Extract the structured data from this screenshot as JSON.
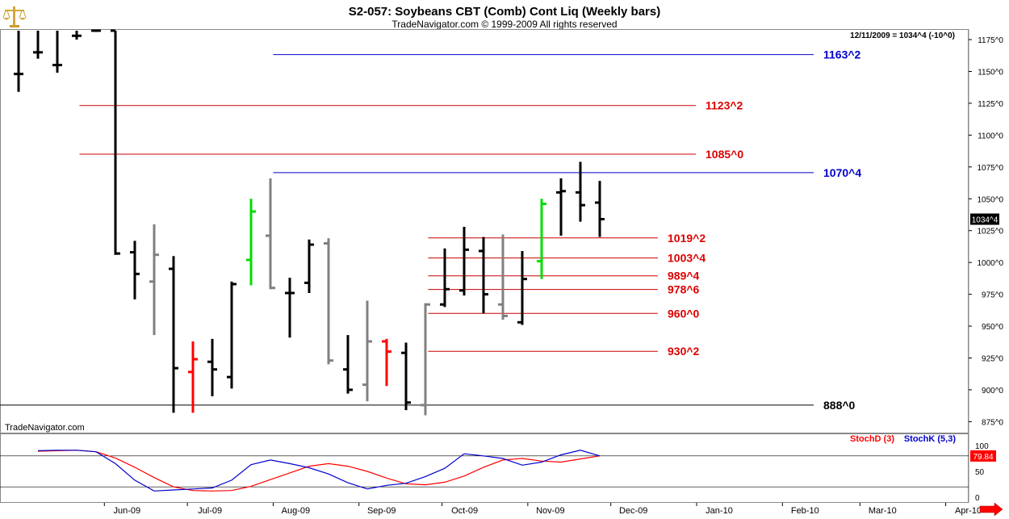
{
  "header": {
    "title": "S2-057:  Soybeans CBT (Comb) Cont Liq  (Weekly bars)",
    "subtitle": "TradeNavigator.com © 1999-2009 All rights reserved",
    "info": "12/11/2009 = 1034^4 (-10^0)",
    "watermark": "TradeNavigator.com",
    "logo_icon": "scales-logo-icon"
  },
  "colors": {
    "up": "#000000",
    "down_gray": "#808080",
    "green": "#00dd00",
    "red": "#ff0000",
    "blue_level": "#0000cc",
    "red_level": "#cc0000",
    "stochD": "#ff0000",
    "stochK": "#0000cc"
  },
  "chart_data": [
    {
      "type": "ohlc",
      "title": "S2-057:  Soybeans CBT (Comb) Cont Liq  (Weekly bars)",
      "y_ticks": [
        "1175^0",
        "1150^0",
        "1125^0",
        "1100^0",
        "1075^0",
        "1050^0",
        "1025^0",
        "1000^0",
        "975^0",
        "950^0",
        "925^0",
        "900^0",
        "875^0"
      ],
      "ylim": [
        867,
        1182
      ],
      "x_labels": [
        "Jun-09",
        "Jul-09",
        "Aug-09",
        "Sep-09",
        "Oct-09",
        "Nov-09",
        "Dec-09",
        "Jan-10",
        "Feb-10",
        "Mar-10",
        "Apr-10"
      ],
      "last_price_label": "1034^4",
      "bars": [
        {
          "date": "2009-05-01",
          "open": 1148,
          "high": 1182,
          "low": 1134,
          "close": 1148,
          "color": "black"
        },
        {
          "date": "2009-05-08",
          "open": 1165,
          "high": 1182,
          "low": 1160,
          "close": 1165,
          "color": "black"
        },
        {
          "date": "2009-05-15",
          "open": 1155,
          "high": 1182,
          "low": 1149,
          "close": 1155,
          "color": "black"
        },
        {
          "date": "2009-05-22",
          "open": 1178,
          "high": 1182,
          "low": 1175,
          "close": 1178,
          "color": "black"
        },
        {
          "date": "2009-05-29",
          "open": 1182,
          "high": 1182,
          "low": 1181,
          "close": 1182,
          "color": "black"
        },
        {
          "date": "2009-06-05",
          "open": 1182,
          "high": 1182,
          "low": 1006,
          "close": 1007,
          "color": "black"
        },
        {
          "date": "2009-06-12",
          "open": 1008,
          "high": 1017,
          "low": 971,
          "close": 991,
          "color": "black"
        },
        {
          "date": "2009-06-19",
          "open": 985,
          "high": 1030,
          "low": 943,
          "close": 1006,
          "color": "gray"
        },
        {
          "date": "2009-06-26",
          "open": 995,
          "high": 1005,
          "low": 882,
          "close": 917,
          "color": "black"
        },
        {
          "date": "2009-07-03",
          "open": 914,
          "high": 938,
          "low": 882,
          "close": 924,
          "color": "red"
        },
        {
          "date": "2009-07-10",
          "open": 922,
          "high": 940,
          "low": 895,
          "close": 916,
          "color": "black"
        },
        {
          "date": "2009-07-17",
          "open": 910,
          "high": 985,
          "low": 901,
          "close": 983,
          "color": "black"
        },
        {
          "date": "2009-07-24",
          "open": 1002,
          "high": 1050,
          "low": 982,
          "close": 1040,
          "color": "green"
        },
        {
          "date": "2009-07-31",
          "open": 1021,
          "high": 1066,
          "low": 979,
          "close": 980,
          "color": "gray"
        },
        {
          "date": "2009-08-07",
          "open": 976,
          "high": 988,
          "low": 941,
          "close": 976,
          "color": "black"
        },
        {
          "date": "2009-08-14",
          "open": 984,
          "high": 1018,
          "low": 976,
          "close": 1014,
          "color": "black"
        },
        {
          "date": "2009-08-21",
          "open": 1015,
          "high": 1019,
          "low": 920,
          "close": 923,
          "color": "gray"
        },
        {
          "date": "2009-08-28",
          "open": 916,
          "high": 943,
          "low": 897,
          "close": 900,
          "color": "black"
        },
        {
          "date": "2009-09-04",
          "open": 904,
          "high": 970,
          "low": 891,
          "close": 938,
          "color": "gray"
        },
        {
          "date": "2009-09-11",
          "open": 938,
          "high": 940,
          "low": 903,
          "close": 930,
          "color": "red"
        },
        {
          "date": "2009-09-18",
          "open": 929,
          "high": 937,
          "low": 884,
          "close": 890,
          "color": "black"
        },
        {
          "date": "2009-09-25",
          "open": 888,
          "high": 968,
          "low": 880,
          "close": 967,
          "color": "gray"
        },
        {
          "date": "2009-10-02",
          "open": 967,
          "high": 1011,
          "low": 965,
          "close": 979,
          "color": "black"
        },
        {
          "date": "2009-10-09",
          "open": 978,
          "high": 1028,
          "low": 974,
          "close": 1010,
          "color": "black"
        },
        {
          "date": "2009-10-16",
          "open": 1009,
          "high": 1020,
          "low": 960,
          "close": 975,
          "color": "black"
        },
        {
          "date": "2009-10-23",
          "open": 967,
          "high": 1022,
          "low": 955,
          "close": 958,
          "color": "gray"
        },
        {
          "date": "2009-10-30",
          "open": 953,
          "high": 1009,
          "low": 951,
          "close": 987,
          "color": "black"
        },
        {
          "date": "2009-11-06",
          "open": 1001,
          "high": 1050,
          "low": 987,
          "close": 1046,
          "color": "green"
        },
        {
          "date": "2009-11-13",
          "open": 1055,
          "high": 1066,
          "low": 1021,
          "close": 1056,
          "color": "black"
        },
        {
          "date": "2009-11-20",
          "open": 1055,
          "high": 1079,
          "low": 1032,
          "close": 1045,
          "color": "black"
        },
        {
          "date": "2009-11-27",
          "open": 1047,
          "high": 1064,
          "low": 1020,
          "close": 1034,
          "color": "black"
        }
      ],
      "levels": [
        {
          "label": "1163^2",
          "value": 1163.25,
          "color": "blue",
          "start": "2009-08-01"
        },
        {
          "label": "1123^2",
          "value": 1123.25,
          "color": "red",
          "start": "2009-05-23"
        },
        {
          "label": "1085^0",
          "value": 1085,
          "color": "red",
          "start": "2009-05-23"
        },
        {
          "label": "1070^4",
          "value": 1070.5,
          "color": "blue",
          "start": "2009-08-01"
        },
        {
          "label": "1019^2",
          "value": 1019.25,
          "color": "red",
          "start": "2009-09-26"
        },
        {
          "label": "1003^4",
          "value": 1003.5,
          "color": "red",
          "start": "2009-09-26"
        },
        {
          "label": "989^4",
          "value": 989.5,
          "color": "red",
          "start": "2009-09-26"
        },
        {
          "label": "978^6",
          "value": 978.75,
          "color": "red",
          "start": "2009-09-26"
        },
        {
          "label": "960^0",
          "value": 960,
          "color": "red",
          "start": "2009-09-26"
        },
        {
          "label": "930^2",
          "value": 930.25,
          "color": "red",
          "start": "2009-09-26"
        },
        {
          "label": "888^0",
          "value": 888,
          "color": "black",
          "start": "2009-04-15"
        }
      ]
    },
    {
      "type": "line",
      "ylim": [
        0,
        100
      ],
      "y_ticks": [
        "100",
        "50",
        "0"
      ],
      "reference_lines": [
        80,
        20
      ],
      "last_value_label": "79.84",
      "series": [
        {
          "name": "StochD (3)",
          "color": "red",
          "x": [
            "2009-05-08",
            "2009-05-15",
            "2009-05-22",
            "2009-05-29",
            "2009-06-05",
            "2009-06-12",
            "2009-06-19",
            "2009-06-26",
            "2009-07-03",
            "2009-07-10",
            "2009-07-17",
            "2009-07-24",
            "2009-07-31",
            "2009-08-07",
            "2009-08-14",
            "2009-08-21",
            "2009-08-28",
            "2009-09-04",
            "2009-09-11",
            "2009-09-18",
            "2009-09-25",
            "2009-10-02",
            "2009-10-09",
            "2009-10-16",
            "2009-10-23",
            "2009-10-30",
            "2009-11-06",
            "2009-11-13",
            "2009-11-20",
            "2009-11-27"
          ],
          "values": [
            89,
            90,
            91,
            88,
            76,
            58,
            38,
            20,
            13,
            12,
            13,
            21,
            34,
            47,
            60,
            65,
            60,
            50,
            37,
            26,
            24,
            29,
            41,
            58,
            72,
            75,
            70,
            68,
            74,
            80
          ]
        },
        {
          "name": "StochK (5,3)",
          "color": "blue",
          "x": [
            "2009-05-08",
            "2009-05-15",
            "2009-05-22",
            "2009-05-29",
            "2009-06-05",
            "2009-06-12",
            "2009-06-19",
            "2009-06-26",
            "2009-07-03",
            "2009-07-10",
            "2009-07-17",
            "2009-07-24",
            "2009-07-31",
            "2009-08-07",
            "2009-08-14",
            "2009-08-21",
            "2009-08-28",
            "2009-09-04",
            "2009-09-11",
            "2009-09-18",
            "2009-09-25",
            "2009-10-02",
            "2009-10-09",
            "2009-10-16",
            "2009-10-23",
            "2009-10-30",
            "2009-11-06",
            "2009-11-13",
            "2009-11-20",
            "2009-11-27"
          ],
          "values": [
            90,
            91,
            91,
            88,
            65,
            33,
            12,
            14,
            16,
            18,
            33,
            63,
            72,
            65,
            57,
            45,
            28,
            16,
            23,
            27,
            40,
            56,
            84,
            80,
            75,
            62,
            68,
            82,
            91,
            80
          ]
        }
      ]
    }
  ],
  "layout_note": ""
}
